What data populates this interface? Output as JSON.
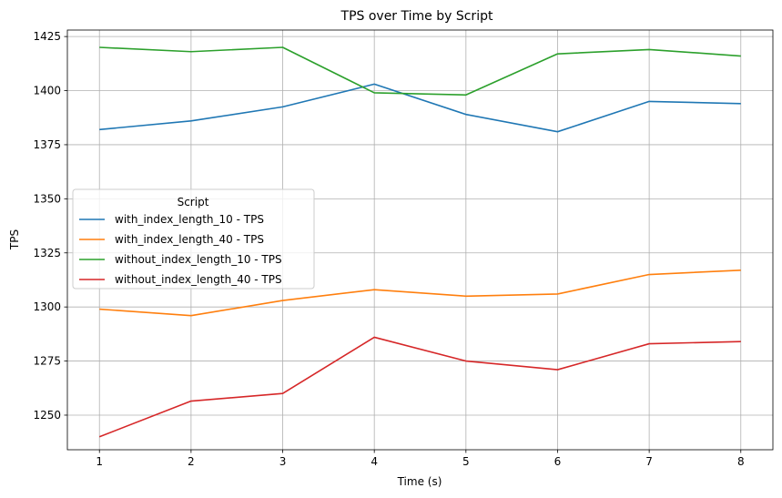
{
  "chart_data": {
    "type": "line",
    "title": "TPS over Time by Script",
    "xlabel": "Time (s)",
    "ylabel": "TPS",
    "x": [
      1,
      2,
      3,
      4,
      5,
      6,
      7,
      8
    ],
    "xlim": [
      0.65,
      8.35
    ],
    "ylim": [
      1234,
      1428
    ],
    "yticks": [
      1250,
      1275,
      1300,
      1325,
      1350,
      1375,
      1400,
      1425
    ],
    "grid": true,
    "legend": {
      "title": "Script",
      "placement": "center-left"
    },
    "series": [
      {
        "name": "with_index_length_10 - TPS",
        "color": "#1f77b4",
        "values": [
          1382,
          1386,
          1392.5,
          1403,
          1389,
          1381,
          1395,
          1394
        ]
      },
      {
        "name": "with_index_length_40 - TPS",
        "color": "#ff7f0e",
        "values": [
          1299,
          1296,
          1303,
          1308,
          1305,
          1306,
          1315,
          1317
        ]
      },
      {
        "name": "without_index_length_10 - TPS",
        "color": "#2ca02c",
        "values": [
          1420,
          1418,
          1420,
          1399,
          1398,
          1417,
          1419,
          1416
        ]
      },
      {
        "name": "without_index_length_40 - TPS",
        "color": "#d62728",
        "values": [
          1240,
          1256.5,
          1260,
          1286,
          1275,
          1271,
          1283,
          1284
        ]
      }
    ]
  }
}
